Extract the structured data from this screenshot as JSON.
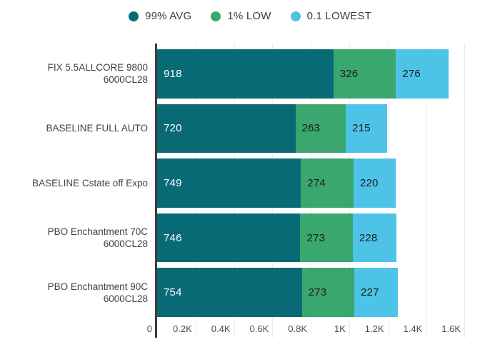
{
  "chart_data": {
    "type": "bar",
    "orientation": "horizontal",
    "stacked": true,
    "title": "",
    "xlabel": "",
    "ylabel": "",
    "categories": [
      "FIX 5.5ALLCORE 9800\n6000CL28",
      "BASELINE FULL AUTO",
      "BASELINE Cstate off Expo",
      "PBO Enchantment 70C\n6000CL28",
      "PBO Enchantment 90C\n6000CL28"
    ],
    "series": [
      {
        "name": "99% AVG",
        "color": "#086a75",
        "values": [
          918,
          720,
          749,
          746,
          754
        ]
      },
      {
        "name": "1% LOW",
        "color": "#3aa76e",
        "values": [
          326,
          263,
          274,
          273,
          273
        ]
      },
      {
        "name": "0.1 LOWEST",
        "color": "#4ec3e8",
        "values": [
          276,
          215,
          220,
          228,
          227
        ]
      }
    ],
    "x_ticks": [
      "0",
      "0.2K",
      "0.4K",
      "0.6K",
      "0.8K",
      "1K",
      "1.2K",
      "1.4K",
      "1.6K"
    ],
    "x_tick_values": [
      0,
      200,
      400,
      600,
      800,
      1000,
      1200,
      1400,
      1600
    ],
    "xlim": [
      0,
      1600
    ],
    "grid": true,
    "legend_position": "top"
  },
  "style": {
    "background": "#ffffff",
    "axis_line_color": "#3d3d3d",
    "gridline_color": "#ebebeb",
    "category_label_color": "#424242",
    "tick_label_color": "#4d4d4d",
    "legend_text_color": "#3c3c3c",
    "value_label_colors": [
      "#ffffff",
      "#1c1c1c",
      "#1c1c1c"
    ]
  }
}
